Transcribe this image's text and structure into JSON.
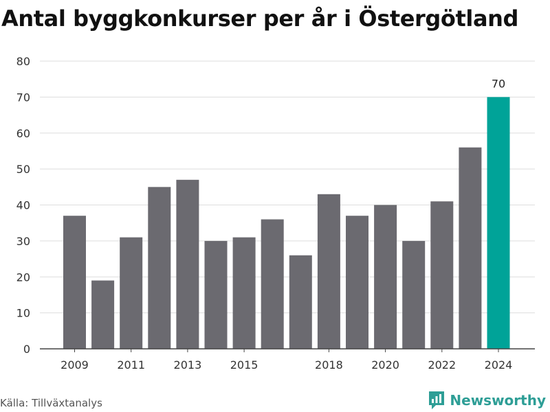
{
  "header": {
    "title": "Antal byggkonkurser per år i Östergötland"
  },
  "footer": {
    "source": "Källa: Tillväxtanalys",
    "brand": "Newsworthy"
  },
  "colors": {
    "bar": "#6b6a70",
    "highlight": "#00a398",
    "grid": "#dddddd",
    "axis": "#444444",
    "brand": "#2e9e96"
  },
  "icons": {
    "brand_logo": "newsworthy-logo-icon"
  },
  "chart_data": {
    "type": "bar",
    "title": "Antal byggkonkurser per år i Östergötland",
    "xlabel": "",
    "ylabel": "",
    "categories": [
      "2009",
      "2010",
      "2011",
      "2012",
      "2013",
      "2014",
      "2015",
      "2016",
      "2017",
      "2018",
      "2019",
      "2020",
      "2021",
      "2022",
      "2023",
      "2024"
    ],
    "values": [
      37,
      19,
      31,
      45,
      47,
      30,
      31,
      36,
      26,
      43,
      37,
      40,
      30,
      41,
      56,
      70
    ],
    "x_tick_labels": [
      "2009",
      "2011",
      "2013",
      "2015",
      "2018",
      "2020",
      "2022",
      "2024"
    ],
    "ylim": [
      0,
      80
    ],
    "y_ticks": [
      "0",
      "10",
      "20",
      "30",
      "40",
      "50",
      "60",
      "70",
      "80"
    ],
    "highlight": {
      "category": "2024",
      "label": "70"
    },
    "grid": true,
    "legend": "none"
  }
}
